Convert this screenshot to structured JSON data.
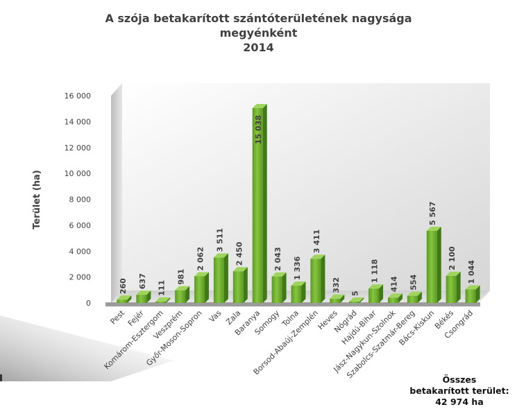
{
  "chart_data": {
    "type": "bar",
    "title_lines": [
      "A szója betakarított szántóterületének nagysága",
      "megyénként",
      "2014"
    ],
    "ylabel": "Terület (ha)",
    "xlabel": "",
    "ylim": [
      0,
      16000
    ],
    "yticks": [
      0,
      2000,
      4000,
      6000,
      8000,
      10000,
      12000,
      14000,
      16000
    ],
    "ytick_labels": [
      "0",
      "2 000",
      "4 000",
      "6 000",
      "8 000",
      "10 000",
      "12 000",
      "14 000",
      "16 000"
    ],
    "categories": [
      "Pest",
      "Fejér",
      "Komárom-Esztergom",
      "Veszprém",
      "Győr-Moson-Sopron",
      "Vas",
      "Zala",
      "Baranya",
      "Somogy",
      "Tolna",
      "Borsod-Abaúj-Zemplén",
      "Heves",
      "Nógrád",
      "Hajdú-Bihar",
      "Jász-Nagykun-Szolnok",
      "Szabolcs-Szatmár-Bereg",
      "Bács-Kiskun",
      "Békés",
      "Csongrád"
    ],
    "values": [
      260,
      637,
      111,
      981,
      2062,
      3511,
      2450,
      15038,
      2043,
      1336,
      3411,
      332,
      5,
      1118,
      414,
      554,
      5567,
      2100,
      1044
    ],
    "value_labels": [
      "260",
      "637",
      "111",
      "981",
      "2 062",
      "3 511",
      "2 450",
      "15 038",
      "2 043",
      "1 336",
      "3 411",
      "332",
      "5",
      "1 118",
      "414",
      "554",
      "5 567",
      "2 100",
      "1 044"
    ],
    "bar_color": "#6aaa2e",
    "grid": false,
    "style": "3d-column"
  },
  "total": {
    "line1": "Összes",
    "line2": "betakarított terület:",
    "line3": "42 974 ha"
  }
}
